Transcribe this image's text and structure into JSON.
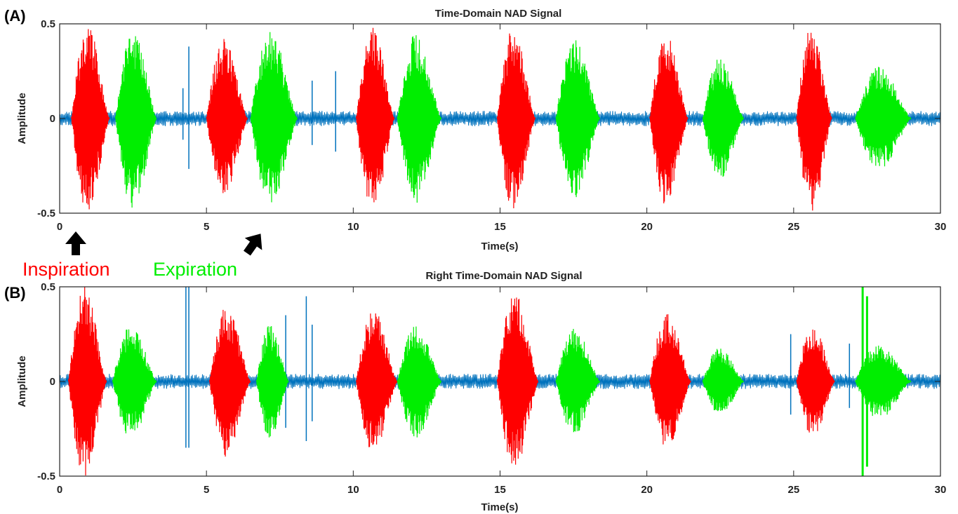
{
  "colors": {
    "inspiration": "#ff0000",
    "expiration": "#00ee00",
    "baseline": "#0072bd",
    "axes": "#222222",
    "arrow": "#000000"
  },
  "legend": {
    "inspiration_label": "Inspiration",
    "expiration_label": "Expiration"
  },
  "chart_data": [
    {
      "panel_label": "(A)",
      "type": "line",
      "title": "Time-Domain NAD Signal",
      "xlabel": "Time(s)",
      "ylabel": "Amplitude",
      "xlim": [
        0,
        30
      ],
      "ylim": [
        -0.5,
        0.5
      ],
      "xticks": [
        0,
        5,
        10,
        15,
        20,
        25,
        30
      ],
      "yticks": [
        -0.5,
        0,
        0.5
      ],
      "ytick_labels": [
        "-0.5",
        "0",
        "0.5"
      ],
      "grid": false,
      "baseline_amplitude": 0.04,
      "inspiration_segments": [
        {
          "start": 0.4,
          "end": 1.7,
          "peak": 0.5
        },
        {
          "start": 5.0,
          "end": 6.4,
          "peak": 0.42
        },
        {
          "start": 10.1,
          "end": 11.4,
          "peak": 0.5
        },
        {
          "start": 14.9,
          "end": 16.2,
          "peak": 0.48
        },
        {
          "start": 20.1,
          "end": 21.4,
          "peak": 0.46
        },
        {
          "start": 25.1,
          "end": 26.3,
          "peak": 0.5
        }
      ],
      "expiration_segments": [
        {
          "start": 1.9,
          "end": 3.3,
          "peak": 0.48
        },
        {
          "start": 6.5,
          "end": 8.1,
          "peak": 0.47
        },
        {
          "start": 11.5,
          "end": 13.0,
          "peak": 0.45
        },
        {
          "start": 16.9,
          "end": 18.4,
          "peak": 0.43
        },
        {
          "start": 21.9,
          "end": 23.3,
          "peak": 0.32
        },
        {
          "start": 27.1,
          "end": 29.0,
          "peak": 0.28
        }
      ],
      "spikes": [
        {
          "x": 4.4,
          "amplitude": 0.38
        },
        {
          "x": 4.2,
          "amplitude": 0.16
        },
        {
          "x": 8.6,
          "amplitude": 0.2
        },
        {
          "x": 9.4,
          "amplitude": 0.25
        }
      ],
      "arrows": [
        {
          "x": 0.55,
          "angle": 0
        },
        {
          "x": 6.6,
          "angle": 35
        }
      ]
    },
    {
      "panel_label": "(B)",
      "type": "line",
      "title": "Right Time-Domain NAD Signal",
      "xlabel": "Time(s)",
      "ylabel": "Amplitude",
      "xlim": [
        0,
        30
      ],
      "ylim": [
        -0.5,
        0.5
      ],
      "xticks": [
        0,
        5,
        10,
        15,
        20,
        25,
        30
      ],
      "yticks": [
        -0.5,
        0,
        0.5
      ],
      "ytick_labels": [
        "-0.5",
        "0",
        "0.5"
      ],
      "grid": false,
      "baseline_amplitude": 0.04,
      "inspiration_segments": [
        {
          "start": 0.3,
          "end": 1.6,
          "peak": 0.5
        },
        {
          "start": 5.1,
          "end": 6.5,
          "peak": 0.4
        },
        {
          "start": 10.1,
          "end": 11.5,
          "peak": 0.38
        },
        {
          "start": 14.9,
          "end": 16.3,
          "peak": 0.47
        },
        {
          "start": 20.1,
          "end": 21.5,
          "peak": 0.36
        },
        {
          "start": 25.1,
          "end": 26.4,
          "peak": 0.3
        }
      ],
      "expiration_segments": [
        {
          "start": 1.8,
          "end": 3.3,
          "peak": 0.3
        },
        {
          "start": 6.7,
          "end": 7.8,
          "peak": 0.3
        },
        {
          "start": 11.5,
          "end": 13.0,
          "peak": 0.3
        },
        {
          "start": 16.9,
          "end": 18.4,
          "peak": 0.28
        },
        {
          "start": 21.9,
          "end": 23.3,
          "peak": 0.18
        },
        {
          "start": 27.1,
          "end": 29.0,
          "peak": 0.2
        }
      ],
      "spikes": [
        {
          "x": 4.3,
          "amplitude": 0.5
        },
        {
          "x": 4.4,
          "amplitude": 0.5
        },
        {
          "x": 8.4,
          "amplitude": 0.45
        },
        {
          "x": 8.6,
          "amplitude": 0.3
        },
        {
          "x": 7.7,
          "amplitude": 0.35
        },
        {
          "x": 24.9,
          "amplitude": 0.25
        },
        {
          "x": 26.9,
          "amplitude": 0.2
        }
      ],
      "green_spikes": [
        {
          "x": 27.35,
          "amplitude": 0.5
        },
        {
          "x": 27.5,
          "amplitude": 0.45
        }
      ],
      "arrows": []
    }
  ]
}
